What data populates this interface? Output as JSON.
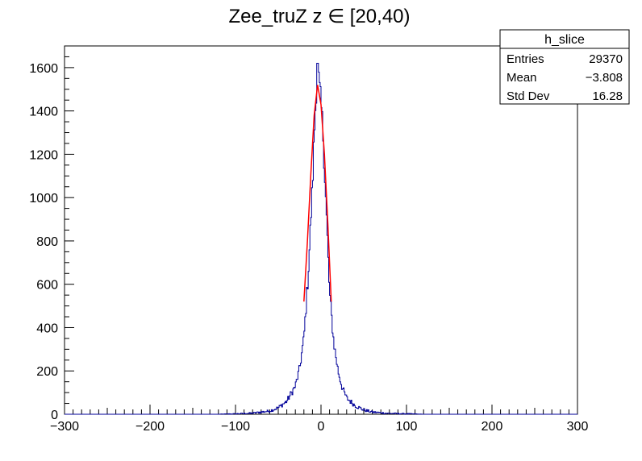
{
  "chart_data": {
    "type": "histogram",
    "title": "Zee_truZ z ∈ [20,40)",
    "xlabel": "",
    "ylabel": "",
    "xlim": [
      -300,
      300
    ],
    "ylim": [
      0,
      1700
    ],
    "x_ticks": [
      -300,
      -200,
      -100,
      0,
      100,
      200,
      300
    ],
    "x_tick_labels": [
      "−300",
      "−200",
      "−100",
      "0",
      "100",
      "200",
      "300"
    ],
    "y_ticks": [
      0,
      200,
      400,
      600,
      800,
      1000,
      1200,
      1400,
      1600
    ],
    "y_tick_labels": [
      "0",
      "200",
      "400",
      "600",
      "800",
      "1000",
      "1200",
      "1400",
      "1600"
    ],
    "grid": false,
    "bin_width": 1,
    "series": [
      {
        "name": "h_slice",
        "style": "histogram-step",
        "color": "#000099",
        "peak_x": -4,
        "peak_y": 1620,
        "profile": {
          "x": [
            -300,
            -120,
            -100,
            -80,
            -60,
            -50,
            -40,
            -30,
            -25,
            -20,
            -15,
            -10,
            -8,
            -5,
            -3,
            0,
            2,
            5,
            8,
            10,
            15,
            20,
            25,
            30,
            40,
            50,
            60,
            80,
            100,
            120,
            300
          ],
          "y": [
            0,
            0,
            2,
            5,
            15,
            30,
            60,
            130,
            210,
            350,
            640,
            1050,
            1280,
            1540,
            1560,
            1430,
            1330,
            1050,
            760,
            560,
            330,
            200,
            120,
            75,
            40,
            20,
            10,
            4,
            2,
            0,
            0
          ]
        }
      },
      {
        "name": "fit",
        "style": "line",
        "color": "#ff0000",
        "x": [
          -20,
          -16,
          -12,
          -8,
          -4,
          0,
          4,
          8,
          12
        ],
        "y": [
          520,
          790,
          1100,
          1380,
          1520,
          1430,
          1200,
          880,
          520
        ]
      }
    ],
    "stats_box": {
      "title": "h_slice",
      "rows": [
        {
          "label": "Entries",
          "value": "29370"
        },
        {
          "label": "Mean",
          "value": "−3.808"
        },
        {
          "label": "Std Dev",
          "value": "16.28"
        }
      ]
    }
  }
}
